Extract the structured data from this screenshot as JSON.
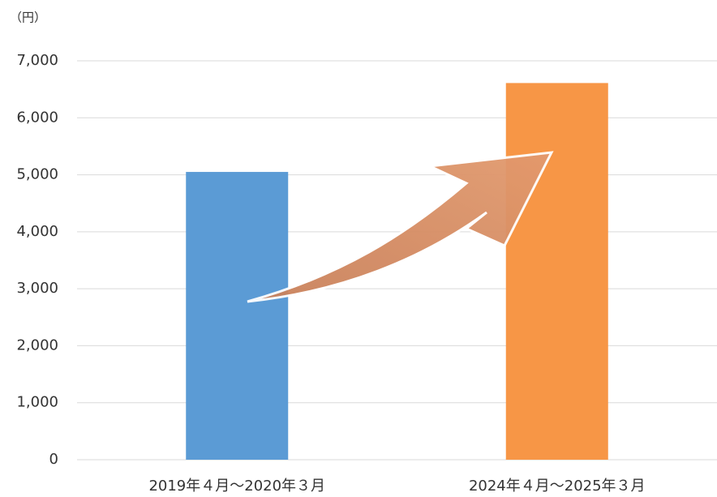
{
  "chart_data": {
    "type": "bar",
    "y_axis_label": "（円）",
    "categories": [
      "2019年４月～2020年３月",
      "2024年４月～2025年３月"
    ],
    "values": [
      5050,
      6610
    ],
    "colors": [
      "#5b9bd5",
      "#f79646"
    ],
    "ylim": [
      0,
      7000
    ],
    "yticks": [
      0,
      {
        "value": 1000,
        "label": "1,000"
      },
      {
        "value": 2000,
        "label": "2,000"
      },
      {
        "value": 3000,
        "label": "3,000"
      },
      {
        "value": 4000,
        "label": "4,000"
      },
      {
        "value": 5000,
        "label": "5,000"
      },
      {
        "value": 6000,
        "label": "6,000"
      },
      {
        "value": 7000,
        "label": "7,000"
      }
    ],
    "grid": true
  }
}
